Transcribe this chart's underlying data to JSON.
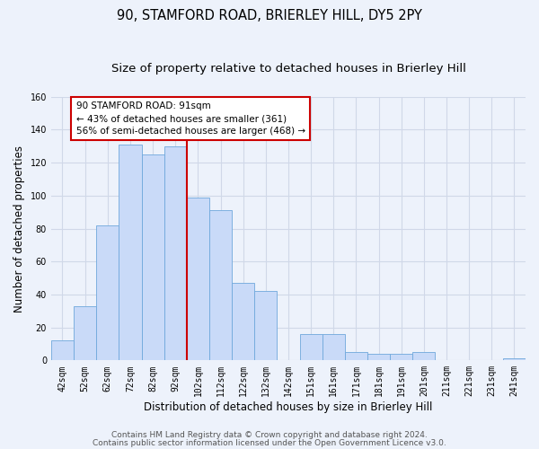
{
  "title": "90, STAMFORD ROAD, BRIERLEY HILL, DY5 2PY",
  "subtitle": "Size of property relative to detached houses in Brierley Hill",
  "xlabel": "Distribution of detached houses by size in Brierley Hill",
  "ylabel": "Number of detached properties",
  "bin_labels": [
    "42sqm",
    "52sqm",
    "62sqm",
    "72sqm",
    "82sqm",
    "92sqm",
    "102sqm",
    "112sqm",
    "122sqm",
    "132sqm",
    "142sqm",
    "151sqm",
    "161sqm",
    "171sqm",
    "181sqm",
    "191sqm",
    "201sqm",
    "211sqm",
    "221sqm",
    "231sqm",
    "241sqm"
  ],
  "bar_values": [
    12,
    33,
    82,
    131,
    125,
    130,
    99,
    91,
    47,
    42,
    0,
    16,
    16,
    5,
    4,
    4,
    5,
    0,
    0,
    0,
    1
  ],
  "bar_color": "#c9daf8",
  "bar_edge_color": "#6fa8dc",
  "vline_color": "#cc0000",
  "ylim": [
    0,
    160
  ],
  "yticks": [
    0,
    20,
    40,
    60,
    80,
    100,
    120,
    140,
    160
  ],
  "annotation_text": "90 STAMFORD ROAD: 91sqm\n← 43% of detached houses are smaller (361)\n56% of semi-detached houses are larger (468) →",
  "annotation_box_color": "#ffffff",
  "annotation_box_edge": "#cc0000",
  "footer1": "Contains HM Land Registry data © Crown copyright and database right 2024.",
  "footer2": "Contains public sector information licensed under the Open Government Licence v3.0.",
  "background_color": "#edf2fb",
  "grid_color": "#d0d8e8",
  "title_fontsize": 10.5,
  "subtitle_fontsize": 9.5,
  "axis_label_fontsize": 8.5,
  "tick_fontsize": 7,
  "footer_fontsize": 6.5,
  "vline_bin_index": 5
}
